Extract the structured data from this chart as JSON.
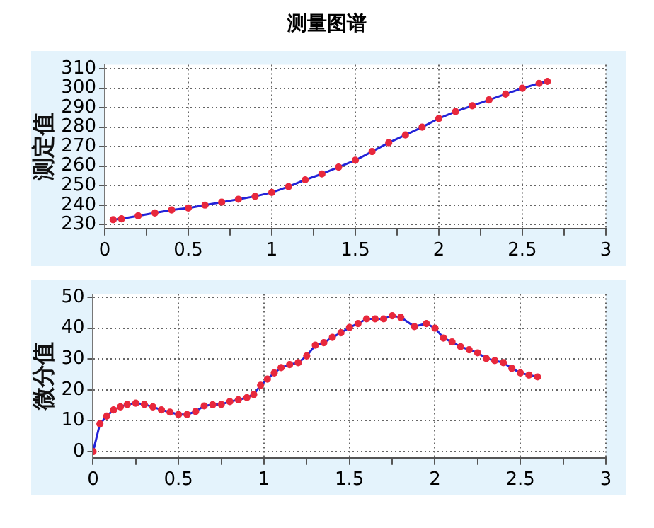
{
  "chart_data": [
    {
      "type": "line",
      "title": "测量图谱",
      "ylabel": "测定值",
      "marker": "circle",
      "grid": true,
      "line_style": "solid",
      "xlim": [
        0,
        3
      ],
      "ylim": [
        228,
        312
      ],
      "xticks": [
        0,
        {
          "value": 0.25,
          "label": null
        },
        0.5,
        {
          "value": 0.75,
          "label": null
        },
        1,
        {
          "value": 1.25,
          "label": null
        },
        1.5,
        {
          "value": 1.75,
          "label": null
        },
        2,
        {
          "value": 2.25,
          "label": null
        },
        2.5,
        {
          "value": 2.75,
          "label": null
        },
        3
      ],
      "yticks": [
        230,
        240,
        250,
        260,
        270,
        280,
        290,
        300,
        310
      ],
      "series": [
        {
          "color": "#2323d8",
          "x": [
            0.05,
            0.1,
            0.2,
            0.3,
            0.4,
            0.5,
            0.6,
            0.7,
            0.8,
            0.9,
            1.0,
            1.1,
            1.2,
            1.3,
            1.4,
            1.5,
            1.6,
            1.7,
            1.8,
            1.9,
            2.0,
            2.1,
            2.2,
            2.3,
            2.4,
            2.5,
            2.6,
            2.65
          ],
          "values": [
            232.5,
            233,
            234.5,
            236,
            237.5,
            238.5,
            240,
            241.5,
            243,
            244.5,
            246.5,
            249.5,
            253,
            256,
            259.5,
            263,
            267.5,
            272,
            276,
            280,
            284.5,
            288,
            291,
            294,
            297,
            300,
            302.5,
            303.5
          ]
        }
      ]
    },
    {
      "type": "line",
      "ylabel": "微分值",
      "marker": "circle",
      "grid": true,
      "line_style": "solid",
      "xlim": [
        0,
        3
      ],
      "ylim": [
        -2,
        51
      ],
      "xticks": [
        0,
        {
          "value": 0.25,
          "label": null
        },
        0.5,
        {
          "value": 0.75,
          "label": null
        },
        1,
        {
          "value": 1.25,
          "label": null
        },
        1.5,
        {
          "value": 1.75,
          "label": null
        },
        2,
        {
          "value": 2.25,
          "label": null
        },
        2.5,
        {
          "value": 2.75,
          "label": null
        },
        3
      ],
      "yticks": [
        0,
        10,
        20,
        30,
        40,
        50
      ],
      "series": [
        {
          "color": "#2323d8",
          "x": [
            0,
            0.04,
            0.08,
            0.12,
            0.16,
            0.2,
            0.25,
            0.3,
            0.35,
            0.4,
            0.45,
            0.5,
            0.55,
            0.6,
            0.65,
            0.7,
            0.75,
            0.8,
            0.85,
            0.9,
            0.94,
            0.98,
            1.02,
            1.06,
            1.1,
            1.15,
            1.2,
            1.25,
            1.3,
            1.35,
            1.4,
            1.45,
            1.5,
            1.55,
            1.6,
            1.65,
            1.7,
            1.75,
            1.8,
            1.88,
            1.95,
            2.0,
            2.05,
            2.1,
            2.15,
            2.2,
            2.25,
            2.3,
            2.35,
            2.4,
            2.45,
            2.5,
            2.55,
            2.6
          ],
          "values": [
            0,
            9,
            11.5,
            13.5,
            14.5,
            15.3,
            15.7,
            15.3,
            14.5,
            13.5,
            12.8,
            12,
            12,
            13,
            14.8,
            15.2,
            15.3,
            16.2,
            16.8,
            17.5,
            18.5,
            21.5,
            23.5,
            25.5,
            27.2,
            28.2,
            28.8,
            31,
            34.5,
            35.3,
            37,
            38.5,
            40.2,
            41.5,
            43,
            43,
            43,
            44,
            43.5,
            40.5,
            41.5,
            40,
            36.8,
            35.5,
            34,
            33,
            32,
            30.2,
            29.5,
            28.8,
            27,
            25.5,
            24.8,
            24.2
          ]
        }
      ]
    }
  ]
}
